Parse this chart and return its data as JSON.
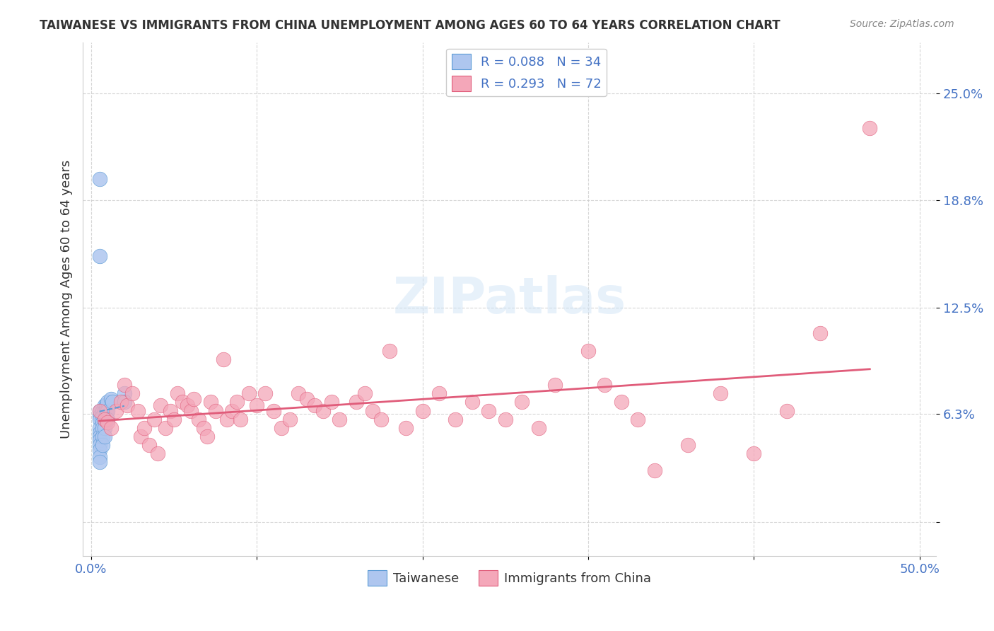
{
  "title": "TAIWANESE VS IMMIGRANTS FROM CHINA UNEMPLOYMENT AMONG AGES 60 TO 64 YEARS CORRELATION CHART",
  "source": "Source: ZipAtlas.com",
  "xlabel": "",
  "ylabel": "Unemployment Among Ages 60 to 64 years",
  "xlim": [
    0.0,
    0.5
  ],
  "ylim": [
    -0.02,
    0.28
  ],
  "yticks": [
    0.0,
    0.063,
    0.125,
    0.188,
    0.25
  ],
  "ytick_labels": [
    "",
    "6.3%",
    "12.5%",
    "18.8%",
    "25.0%"
  ],
  "xticks": [
    0.0,
    0.1,
    0.2,
    0.3,
    0.4,
    0.5
  ],
  "xtick_labels": [
    "0.0%",
    "",
    "",
    "",
    "",
    "50.0%"
  ],
  "r_taiwanese": 0.088,
  "n_taiwanese": 34,
  "r_china": 0.293,
  "n_china": 72,
  "taiwanese_color": "#aec6ef",
  "taiwan_trendline_color": "#5b9bd5",
  "china_color": "#f4a7b9",
  "china_trendline_color": "#e05c7a",
  "watermark": "ZIPatlas",
  "background_color": "#ffffff",
  "taiwanese_x": [
    0.005,
    0.005,
    0.005,
    0.005,
    0.005,
    0.005,
    0.005,
    0.005,
    0.005,
    0.005,
    0.005,
    0.005,
    0.005,
    0.007,
    0.007,
    0.007,
    0.007,
    0.007,
    0.007,
    0.008,
    0.008,
    0.008,
    0.008,
    0.008,
    0.009,
    0.009,
    0.009,
    0.01,
    0.01,
    0.01,
    0.012,
    0.013,
    0.02,
    0.02
  ],
  "taiwanese_y": [
    0.2,
    0.155,
    0.065,
    0.062,
    0.06,
    0.055,
    0.052,
    0.05,
    0.048,
    0.045,
    0.042,
    0.038,
    0.035,
    0.065,
    0.062,
    0.058,
    0.055,
    0.05,
    0.045,
    0.068,
    0.065,
    0.06,
    0.055,
    0.05,
    0.068,
    0.065,
    0.06,
    0.07,
    0.065,
    0.06,
    0.072,
    0.07,
    0.075,
    0.07
  ],
  "china_x": [
    0.005,
    0.008,
    0.01,
    0.012,
    0.015,
    0.018,
    0.02,
    0.022,
    0.025,
    0.028,
    0.03,
    0.032,
    0.035,
    0.038,
    0.04,
    0.042,
    0.045,
    0.048,
    0.05,
    0.052,
    0.055,
    0.058,
    0.06,
    0.062,
    0.065,
    0.068,
    0.07,
    0.072,
    0.075,
    0.08,
    0.082,
    0.085,
    0.088,
    0.09,
    0.095,
    0.1,
    0.105,
    0.11,
    0.115,
    0.12,
    0.125,
    0.13,
    0.135,
    0.14,
    0.145,
    0.15,
    0.16,
    0.165,
    0.17,
    0.175,
    0.18,
    0.19,
    0.2,
    0.21,
    0.22,
    0.23,
    0.24,
    0.25,
    0.26,
    0.27,
    0.28,
    0.3,
    0.31,
    0.32,
    0.33,
    0.34,
    0.36,
    0.38,
    0.4,
    0.42,
    0.44,
    0.47
  ],
  "china_y": [
    0.065,
    0.06,
    0.058,
    0.055,
    0.065,
    0.07,
    0.08,
    0.068,
    0.075,
    0.065,
    0.05,
    0.055,
    0.045,
    0.06,
    0.04,
    0.068,
    0.055,
    0.065,
    0.06,
    0.075,
    0.07,
    0.068,
    0.065,
    0.072,
    0.06,
    0.055,
    0.05,
    0.07,
    0.065,
    0.095,
    0.06,
    0.065,
    0.07,
    0.06,
    0.075,
    0.068,
    0.075,
    0.065,
    0.055,
    0.06,
    0.075,
    0.072,
    0.068,
    0.065,
    0.07,
    0.06,
    0.07,
    0.075,
    0.065,
    0.06,
    0.1,
    0.055,
    0.065,
    0.075,
    0.06,
    0.07,
    0.065,
    0.06,
    0.07,
    0.055,
    0.08,
    0.1,
    0.08,
    0.07,
    0.06,
    0.03,
    0.045,
    0.075,
    0.04,
    0.065,
    0.11,
    0.23
  ]
}
